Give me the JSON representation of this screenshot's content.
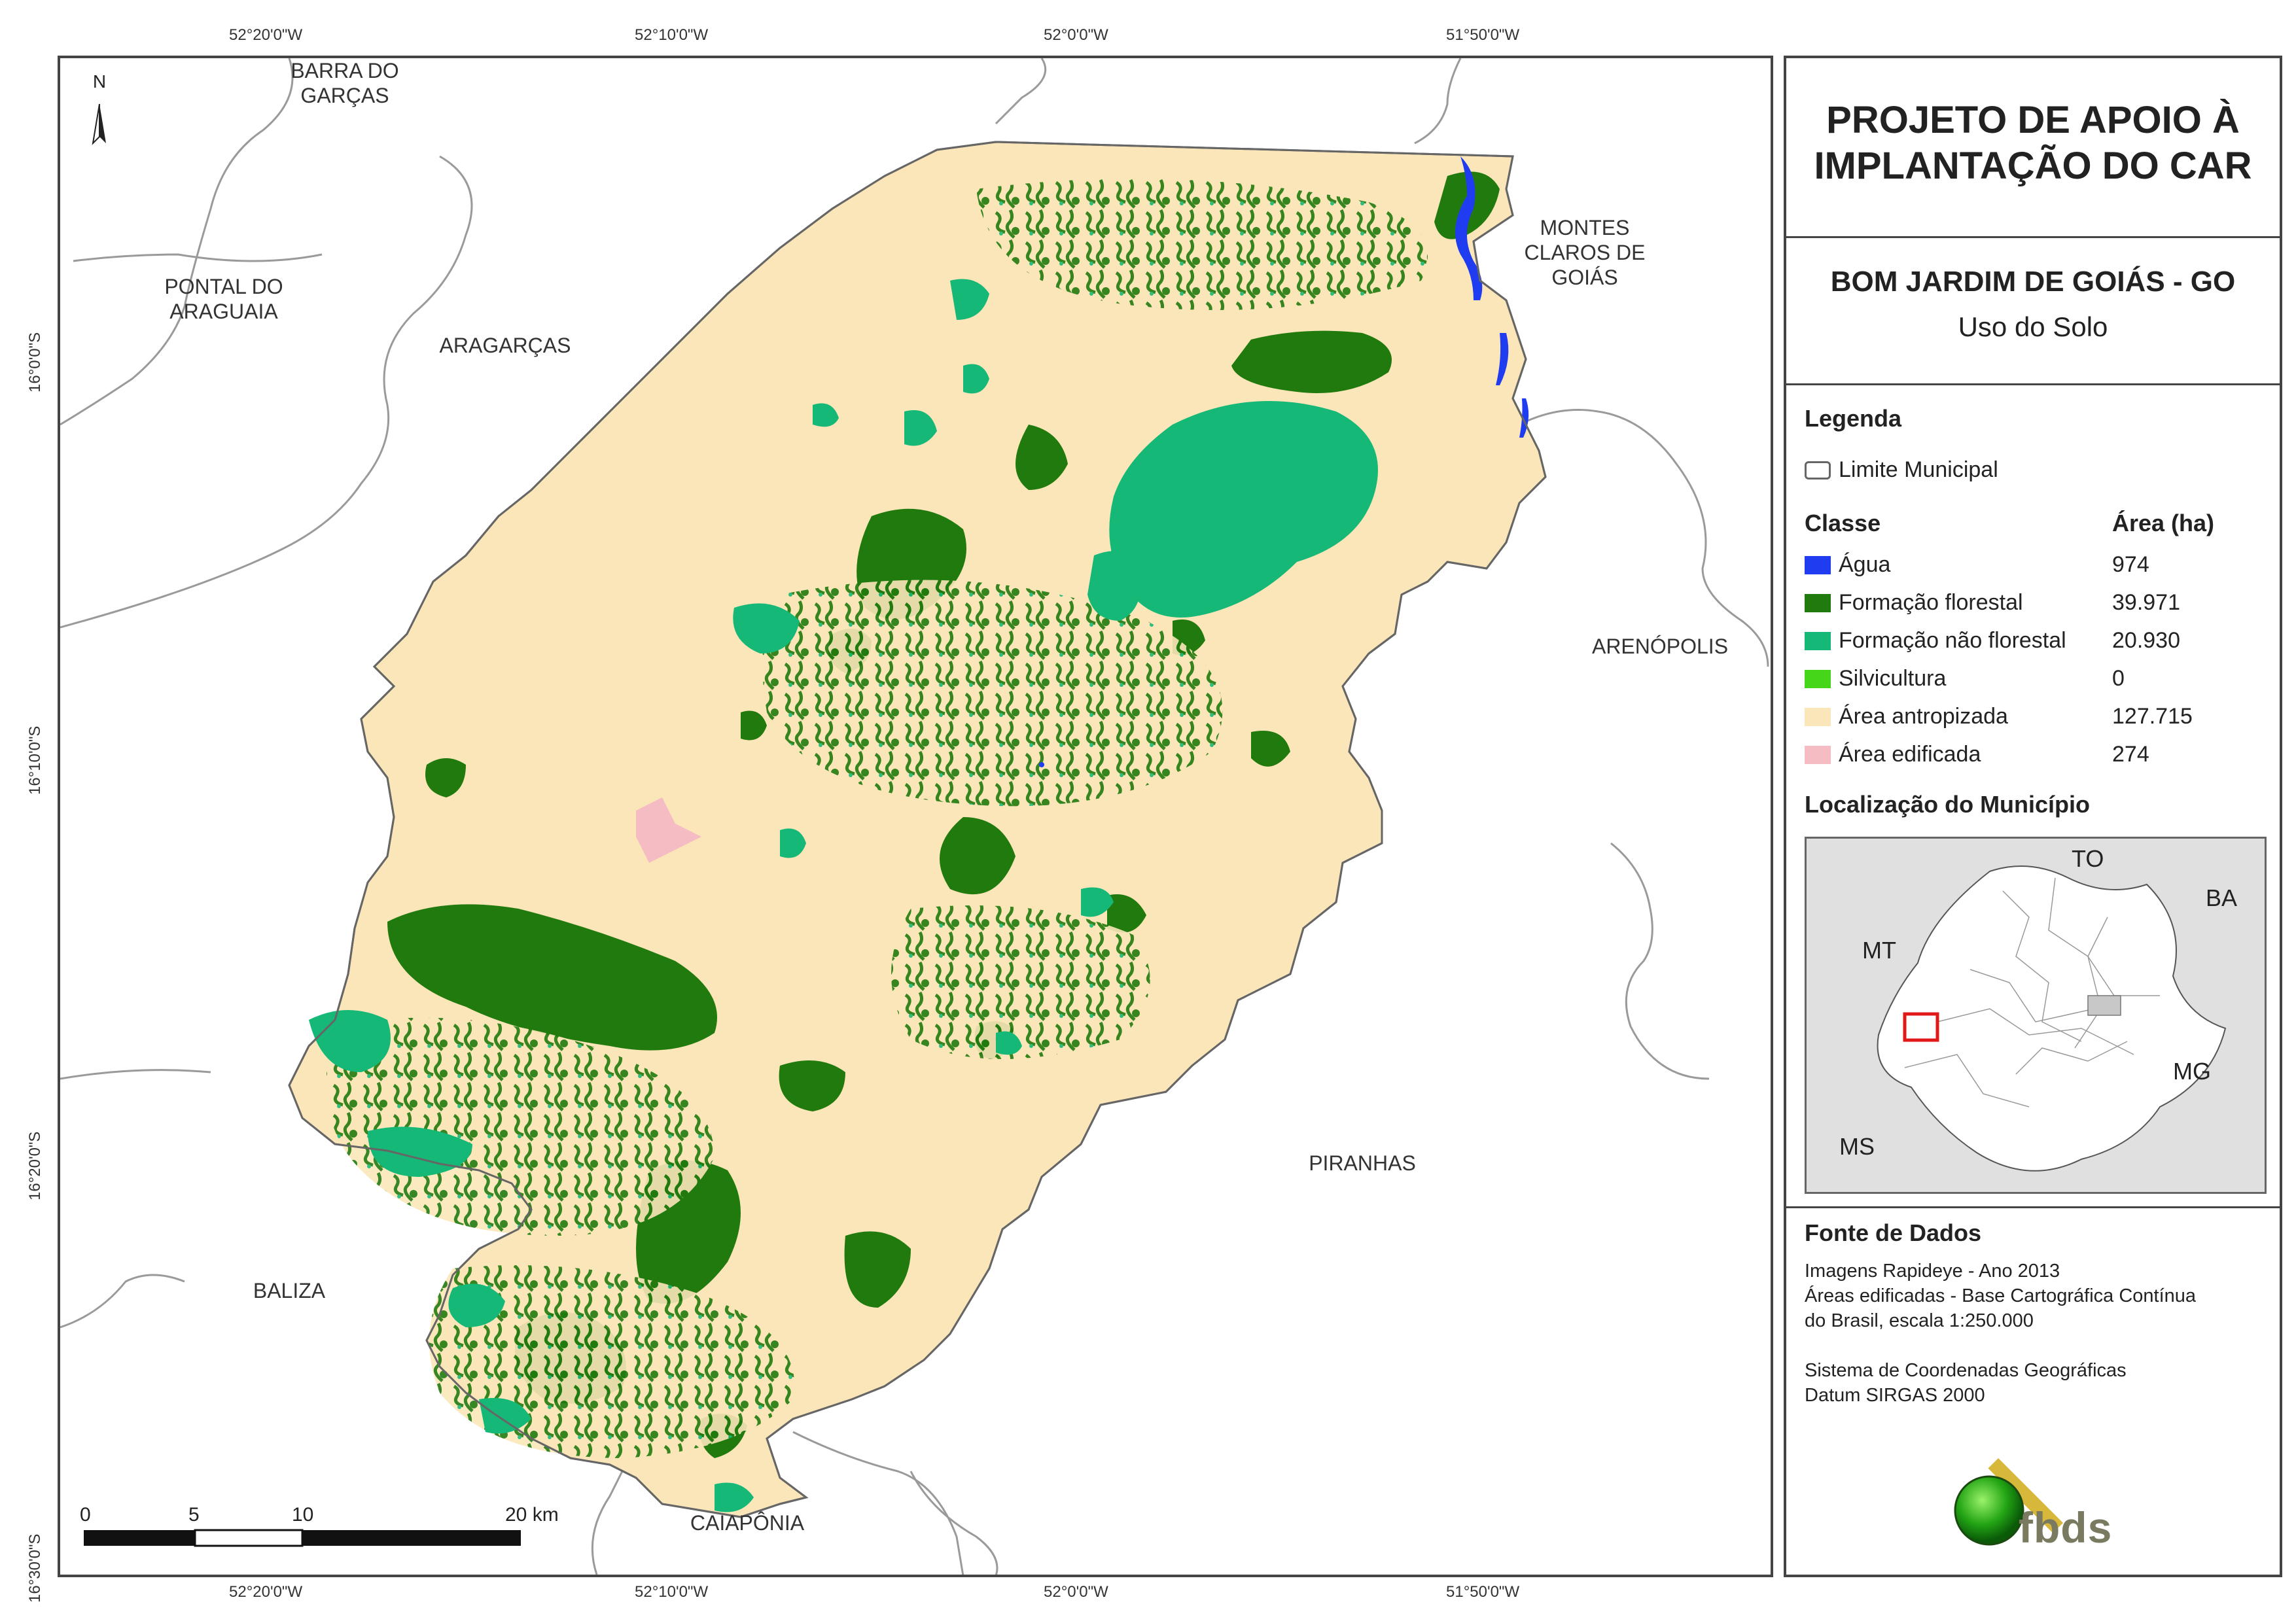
{
  "coords": {
    "top": [
      "52°20'0\"W",
      "52°10'0\"W",
      "52°0'0\"W",
      "51°50'0\"W"
    ],
    "bottom": [
      "52°20'0\"W",
      "52°10'0\"W",
      "52°0'0\"W",
      "51°50'0\"W"
    ],
    "left": [
      "16°0'0\"S",
      "16°10'0\"S",
      "16°20'0\"S",
      "16°30'0\"S"
    ]
  },
  "municipalities": {
    "barra": "BARRA DO\nGARÇAS",
    "pontal": "PONTAL DO\nARAGUAIA",
    "aragarcas": "ARAGARÇAS",
    "montes": "MONTES\nCLAROS DE\nGOIÁS",
    "arenopolis": "ARENÓPOLIS",
    "piranhas": "PIRANHAS",
    "baliza": "BALIZA",
    "caiaponia": "CAIAPÔNIA"
  },
  "north_label": "N",
  "scale": {
    "ticks": [
      "0",
      "5",
      "10",
      "20 km"
    ]
  },
  "panel": {
    "title": "PROJETO DE APOIO À\nIMPLANTAÇÃO DO CAR",
    "municipality": "BOM JARDIM DE GOIÁS - GO",
    "theme": "Uso do Solo",
    "legend_heading": "Legenda",
    "limit_label": "Limite Municipal",
    "class_heading": "Classe",
    "area_heading": "Área (ha)",
    "classes": [
      {
        "name": "Água",
        "area": "974",
        "color": "#1f3cf0"
      },
      {
        "name": "Formação florestal",
        "area": "39.971",
        "color": "#217a0e"
      },
      {
        "name": "Formação não florestal",
        "area": "20.930",
        "color": "#16b877"
      },
      {
        "name": "Silvicultura",
        "area": "0",
        "color": "#45d61a"
      },
      {
        "name": "Área antropizada",
        "area": "127.715",
        "color": "#fbe6b9"
      },
      {
        "name": "Área edificada",
        "area": "274",
        "color": "#f5bcc4"
      }
    ],
    "location_heading": "Localização do Município",
    "inset_labels": {
      "to": "TO",
      "ba": "BA",
      "mt": "MT",
      "mg": "MG",
      "ms": "MS"
    },
    "source_heading": "Fonte de Dados",
    "source_lines": [
      "Imagens Rapideye - Ano 2013",
      "Áreas edificadas - Base Cartográfica Contínua",
      "do Brasil, escala 1:250.000",
      "",
      "Sistema de Coordenadas Geográficas",
      "Datum SIRGAS 2000"
    ],
    "logo_text": "fbds"
  }
}
